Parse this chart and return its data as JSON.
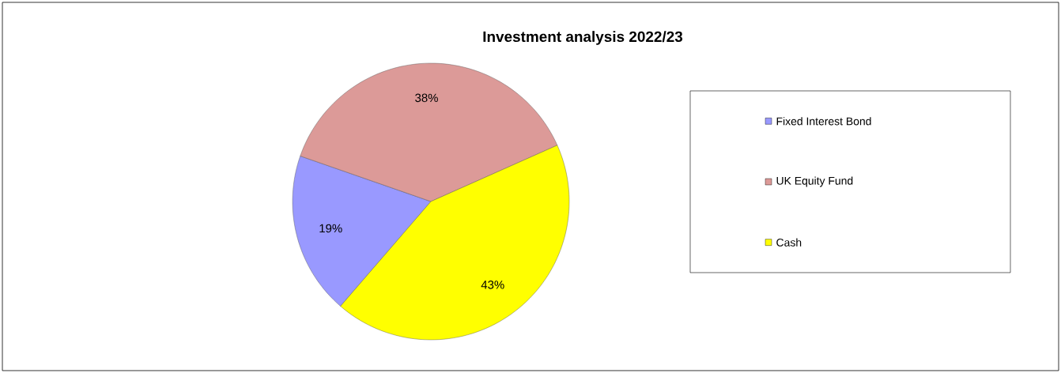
{
  "chart_data": {
    "type": "pie",
    "title": "Investment analysis 2022/23",
    "categories": [
      "Fixed Interest Bond",
      "UK Equity Fund",
      "Cash"
    ],
    "values": [
      19,
      38,
      43
    ],
    "colors": [
      "#9999ff",
      "#dc9a98",
      "#ffff00"
    ],
    "value_labels": [
      "19%",
      "38%",
      "43%"
    ],
    "legend": "right"
  }
}
